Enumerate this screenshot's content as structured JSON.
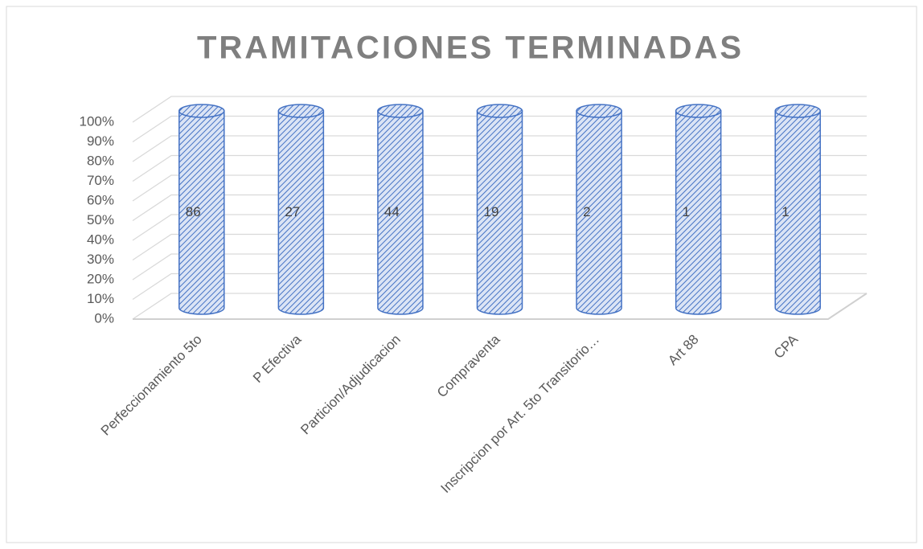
{
  "chart_data": {
    "type": "bar",
    "stacking": "percent",
    "three_d": true,
    "title": "TRAMITACIONES TERMINADAS",
    "categories": [
      "Perfeccionamiento 5to",
      "P Efectiva",
      "Particion/Adjudicacion",
      "Compraventa",
      "Inscripcion por Art. 5to Transitorio…",
      "Art 88",
      "CPA"
    ],
    "values": [
      86,
      27,
      44,
      19,
      2,
      1,
      1
    ],
    "color": "#4472c4",
    "ylim": [
      0,
      100
    ],
    "yticks": [
      {
        "value": 0,
        "label": "0%"
      },
      {
        "value": 10,
        "label": "10%"
      },
      {
        "value": 20,
        "label": "20%"
      },
      {
        "value": 30,
        "label": "30%"
      },
      {
        "value": 40,
        "label": "40%"
      },
      {
        "value": 50,
        "label": "50%"
      },
      {
        "value": 60,
        "label": "60%"
      },
      {
        "value": 70,
        "label": "70%"
      },
      {
        "value": 80,
        "label": "80%"
      },
      {
        "value": 90,
        "label": "90%"
      },
      {
        "value": 100,
        "label": "100%"
      }
    ],
    "grid": true
  }
}
